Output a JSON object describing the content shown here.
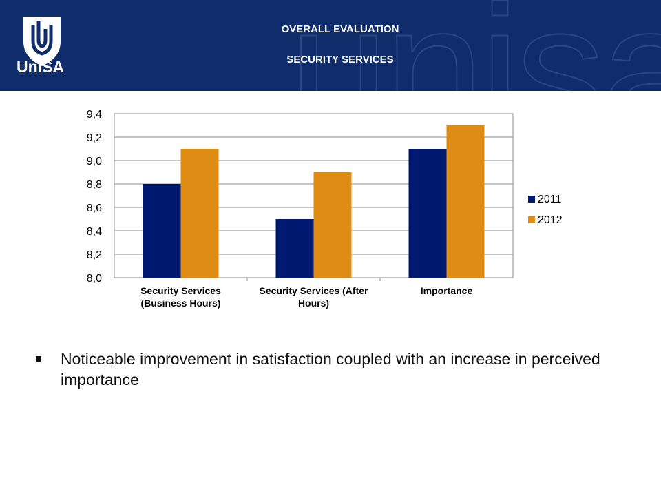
{
  "header": {
    "title": "OVERALL EVALUATION",
    "subtitle": "SECURITY SERVICES",
    "logo_text": "UniSA",
    "watermark": "unisa"
  },
  "bullet": {
    "text": "Noticeable improvement in satisfaction coupled with an increase in perceived importance"
  },
  "colors": {
    "header_bg": "#0f2c6b",
    "series_2011": "#001a72",
    "series_2012": "#df8c14"
  },
  "chart_data": {
    "type": "bar",
    "categories": [
      [
        "Security Services",
        "(Business Hours)"
      ],
      [
        "Security Services (After",
        "Hours)"
      ],
      [
        "Importance"
      ]
    ],
    "series": [
      {
        "name": "2011",
        "values": [
          8.8,
          8.5,
          9.1
        ],
        "color": "#001a72"
      },
      {
        "name": "2012",
        "values": [
          9.1,
          8.9,
          9.3
        ],
        "color": "#df8c14"
      }
    ],
    "ylim": [
      8.0,
      9.4
    ],
    "yticks": [
      "8,0",
      "8,2",
      "8,4",
      "8,6",
      "8,8",
      "9,0",
      "9,2",
      "9,4"
    ],
    "grid": true,
    "legend": "right"
  }
}
